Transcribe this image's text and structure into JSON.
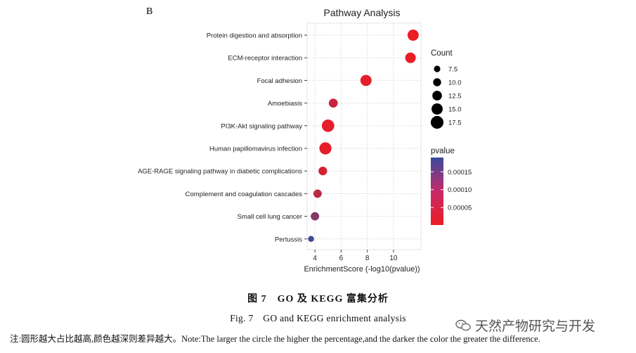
{
  "panel_label": "B",
  "chart_data": {
    "type": "scatter",
    "title": "Pathway Analysis",
    "xlabel": "EnrichmentScore (-log10(pvalue))",
    "ylabel": "",
    "xlim": [
      3.4,
      12.1
    ],
    "x_ticks": [
      4,
      6,
      8,
      10
    ],
    "categories": [
      "Protein digestion and absorption",
      "ECM-receptor interaction",
      "Focal adhesion",
      "Amoebiasis",
      "PI3K-Akt signaling pathway",
      "Human papillomavirus infection",
      "AGE-RAGE signaling pathway in diabetic complications",
      "Complement and coagulation cascades",
      "Small cell lung cancer",
      "Pertussis"
    ],
    "enrichment": [
      11.5,
      11.3,
      7.9,
      5.4,
      5.0,
      4.8,
      4.6,
      4.2,
      4.0,
      3.7
    ],
    "count": [
      15.0,
      14.0,
      15.0,
      11.5,
      17.0,
      16.5,
      11.0,
      10.5,
      10.5,
      6.8
    ],
    "pvalue": [
      3e-06,
      5e-06,
      1.3e-05,
      4e-05,
      1e-05,
      9e-06,
      2.7e-05,
      5.5e-05,
      0.00011,
      0.00018
    ],
    "size_legend": {
      "title": "Count",
      "values": [
        7.5,
        10.0,
        12.5,
        15.0,
        17.5
      ],
      "labels": [
        "7.5",
        "10.0",
        "12.5",
        "15.0",
        "17.5"
      ]
    },
    "color_legend": {
      "title": "pvalue",
      "range": [
        1e-06,
        0.00019
      ],
      "ticks": [
        0.00015,
        0.0001,
        5e-05
      ],
      "tick_labels": [
        "0.00015",
        "0.00010",
        "0.00005"
      ],
      "low_color": "#ed1c24",
      "high_color": "#3a4a9c"
    }
  },
  "captions": {
    "cn": "图 7　GO 及 KEGG 富集分析",
    "en": "Fig. 7　GO and KEGG enrichment analysis",
    "note": "注:圆形越大占比越高,颜色越深则差异越大。Note:The larger the circle the higher the percentage,and the darker the color the greater the difference."
  },
  "watermark": "天然产物研究与开发"
}
